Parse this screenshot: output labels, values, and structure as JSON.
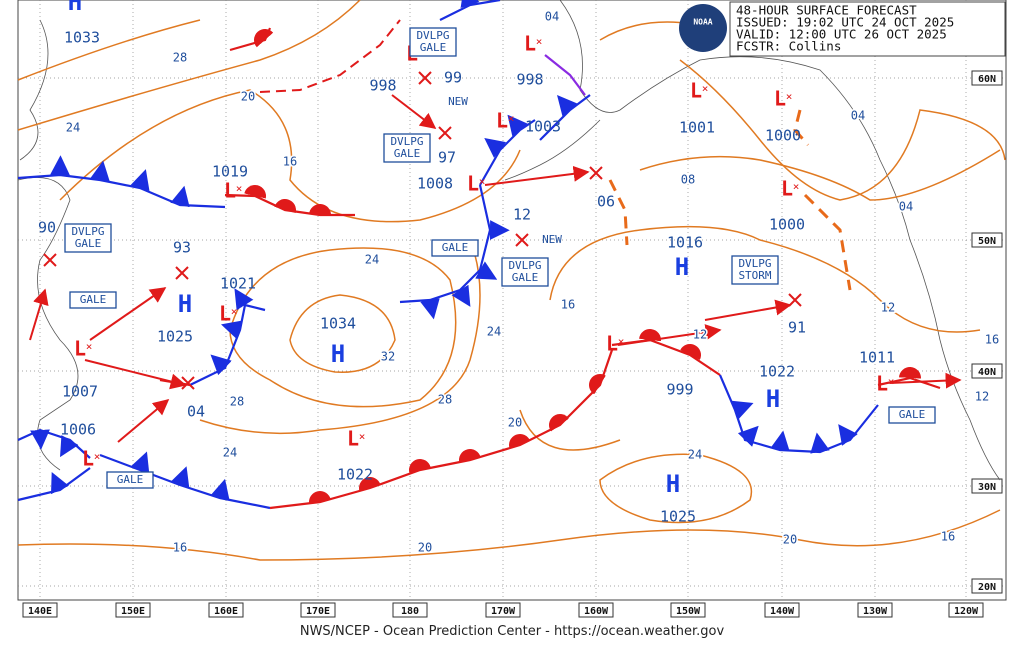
{
  "header": {
    "title": "48-HOUR SURFACE FORECAST",
    "issued": "ISSUED: 19:02 UTC 24 OCT 2025",
    "valid": "VALID:  12:00 UTC 26 OCT 2025",
    "forecaster": "FCSTR:  Collins",
    "logo": "NOAA"
  },
  "footer": "NWS/NCEP - Ocean Prediction Center - https://ocean.weather.gov",
  "longitudes": [
    "140E",
    "150E",
    "160E",
    "170E",
    "180",
    "170W",
    "160W",
    "150W",
    "140W",
    "130W",
    "120W"
  ],
  "latitudes": [
    "60N",
    "50N",
    "40N",
    "30N",
    "20N"
  ],
  "centers": [
    {
      "type": "H",
      "pressure": "1033"
    },
    {
      "type": "L",
      "pressure": "1019"
    },
    {
      "pressure": "93"
    },
    {
      "type": "H",
      "pressure": "1025"
    },
    {
      "type": "L",
      "pressure": "1021"
    },
    {
      "type": "L",
      "pressure": "1007"
    },
    {
      "type": "L",
      "pressure": "1006"
    },
    {
      "pressure": "04"
    },
    {
      "type": "H",
      "pressure": "1034"
    },
    {
      "type": "L",
      "pressure": "998"
    },
    {
      "pressure": "99",
      "note": "NEW"
    },
    {
      "pressure": "97"
    },
    {
      "type": "L",
      "pressure": "1008"
    },
    {
      "type": "L",
      "pressure": "1003"
    },
    {
      "type": "L",
      "pressure": "998"
    },
    {
      "pressure": "12",
      "note": "NEW"
    },
    {
      "pressure": "06"
    },
    {
      "type": "L",
      "pressure": "1001"
    },
    {
      "type": "L",
      "pressure": "1000"
    },
    {
      "type": "L",
      "pressure": "1000"
    },
    {
      "type": "H",
      "pressure": "1016"
    },
    {
      "pressure": "91"
    },
    {
      "type": "L",
      "pressure": "999"
    },
    {
      "type": "H",
      "pressure": "1022"
    },
    {
      "type": "L",
      "pressure": "1011"
    },
    {
      "type": "H",
      "pressure": "1025"
    },
    {
      "type": "L",
      "pressure": "1022"
    },
    {
      "pressure": "90"
    }
  ],
  "isobar_labels": [
    "28",
    "24",
    "20",
    "16",
    "24",
    "24",
    "32",
    "28",
    "28",
    "24",
    "20",
    "16",
    "12",
    "08",
    "04",
    "04",
    "12",
    "16",
    "12",
    "24",
    "20",
    "20",
    "16",
    "16",
    "04"
  ],
  "warnings": [
    [
      "DVLPG",
      "GALE"
    ],
    [
      "DVLPG",
      "GALE"
    ],
    [
      "GALE"
    ],
    [
      "DVLPG",
      "GALE"
    ],
    [
      "GALE"
    ],
    [
      "DVLPG",
      "GALE"
    ],
    [
      "DVLPG",
      "STORM"
    ],
    [
      "GALE"
    ],
    [
      "GALE"
    ]
  ]
}
